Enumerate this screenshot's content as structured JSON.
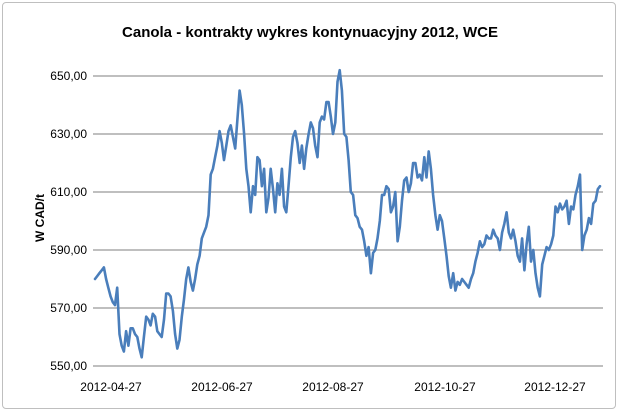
{
  "chart_data": {
    "type": "line",
    "title": "Canola - kontrakty  wykres kontynuacyjny 2012, WCE",
    "xlabel": "",
    "ylabel": "W CAD/t",
    "ylim": [
      550,
      650
    ],
    "yticks": [
      550,
      570,
      590,
      610,
      630,
      650
    ],
    "ytick_labels": [
      "550,00",
      "570,00",
      "590,00",
      "610,00",
      "630,00",
      "650,00"
    ],
    "xtick_labels": [
      "2012-04-27",
      "2012-06-27",
      "2012-08-27",
      "2012-10-27",
      "2012-12-27"
    ],
    "grid": true,
    "legend": "none",
    "color": "#4a7ebb",
    "series": [
      {
        "values": [
          580,
          581,
          582,
          583,
          584,
          580,
          577,
          574,
          572,
          571,
          577,
          561,
          557,
          555,
          562,
          557,
          563,
          563,
          561,
          560,
          556,
          553,
          560,
          567,
          566,
          564,
          568,
          567,
          562,
          561,
          560,
          566,
          575,
          575,
          574,
          569,
          561,
          556,
          559,
          567,
          573,
          580,
          584,
          579,
          576,
          580,
          585,
          588,
          594,
          596,
          598,
          602,
          616,
          618,
          622,
          626,
          631,
          627,
          621,
          626,
          631,
          633,
          629,
          625,
          635,
          645,
          640,
          630,
          618,
          612,
          603,
          612,
          609,
          622,
          621,
          612,
          618,
          603,
          608,
          618,
          611,
          603,
          613,
          609,
          618,
          605,
          603,
          612,
          622,
          629,
          631,
          627,
          620,
          626,
          618,
          625,
          630,
          634,
          632,
          626,
          622,
          634,
          636,
          635,
          641,
          641,
          636,
          630,
          634,
          648,
          652,
          645,
          630,
          629,
          621,
          610,
          609,
          602,
          601,
          598,
          597,
          593,
          588,
          591,
          582,
          589,
          590,
          594,
          600,
          609,
          609,
          612,
          611,
          603,
          605,
          610,
          593,
          598,
          607,
          614,
          615,
          610,
          613,
          620,
          620,
          615,
          616,
          614,
          622,
          615,
          624,
          618,
          609,
          602,
          597,
          602,
          600,
          594,
          588,
          581,
          577,
          582,
          576,
          579,
          578,
          580,
          579,
          578,
          577,
          580,
          582,
          586,
          589,
          593,
          591,
          592,
          595,
          594,
          594,
          597,
          595,
          594,
          590,
          596,
          599,
          603,
          596,
          594,
          597,
          593,
          588,
          586,
          594,
          583,
          592,
          598,
          586,
          590,
          582,
          577,
          574,
          585,
          588,
          591,
          590,
          592,
          595,
          605,
          603,
          606,
          604,
          605,
          607,
          599,
          605,
          604,
          609,
          612,
          616,
          590,
          595,
          597,
          601,
          599,
          606,
          607,
          611,
          612
        ]
      }
    ]
  }
}
